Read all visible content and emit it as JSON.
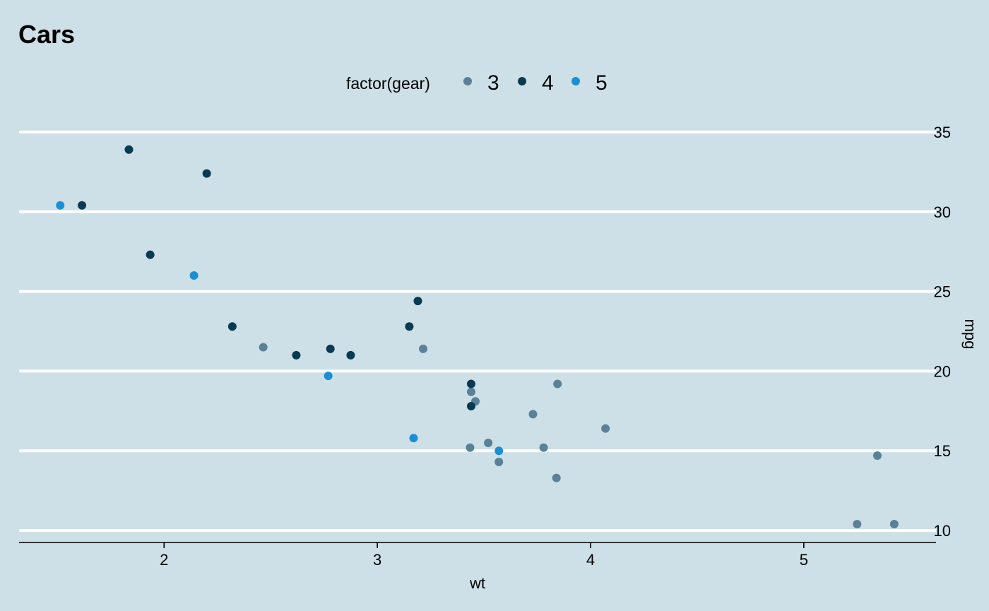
{
  "chart_data": {
    "type": "scatter",
    "title": "Cars",
    "xlabel": "wt",
    "ylabel": "mpg",
    "xlim": [
      1.32,
      5.62
    ],
    "ylim": [
      9.25,
      35.75
    ],
    "x_ticks": [
      2,
      3,
      4,
      5
    ],
    "y_ticks": [
      10,
      15,
      20,
      25,
      30,
      35
    ],
    "y_axis_position": "right",
    "grid": "horizontal-major",
    "legend": {
      "title": "factor(gear)",
      "position": "top",
      "entries": [
        {
          "label": "3",
          "color": "#5B8196"
        },
        {
          "label": "4",
          "color": "#0A3A52"
        },
        {
          "label": "5",
          "color": "#1A8FD4"
        }
      ]
    },
    "background_color": "#CDDFE7",
    "series": [
      {
        "name": "3",
        "color": "#5B8196",
        "points": [
          [
            3.215,
            21.4
          ],
          [
            3.44,
            18.7
          ],
          [
            3.46,
            18.1
          ],
          [
            3.57,
            14.3
          ],
          [
            4.07,
            16.4
          ],
          [
            3.73,
            17.3
          ],
          [
            3.78,
            15.2
          ],
          [
            5.25,
            10.4
          ],
          [
            5.424,
            10.4
          ],
          [
            5.345,
            14.7
          ],
          [
            2.465,
            21.5
          ],
          [
            3.52,
            15.5
          ],
          [
            3.435,
            15.2
          ],
          [
            3.84,
            13.3
          ],
          [
            3.845,
            19.2
          ]
        ]
      },
      {
        "name": "4",
        "color": "#0A3A52",
        "points": [
          [
            2.62,
            21.0
          ],
          [
            2.875,
            21.0
          ],
          [
            2.32,
            22.8
          ],
          [
            3.19,
            24.4
          ],
          [
            3.15,
            22.8
          ],
          [
            3.44,
            19.2
          ],
          [
            3.44,
            17.8
          ],
          [
            2.2,
            32.4
          ],
          [
            1.615,
            30.4
          ],
          [
            1.835,
            33.9
          ],
          [
            1.935,
            27.3
          ],
          [
            2.78,
            21.4
          ]
        ]
      },
      {
        "name": "5",
        "color": "#1A8FD4",
        "points": [
          [
            2.14,
            26.0
          ],
          [
            1.513,
            30.4
          ],
          [
            3.17,
            15.8
          ],
          [
            2.77,
            19.7
          ],
          [
            3.57,
            15.0
          ]
        ]
      }
    ]
  }
}
